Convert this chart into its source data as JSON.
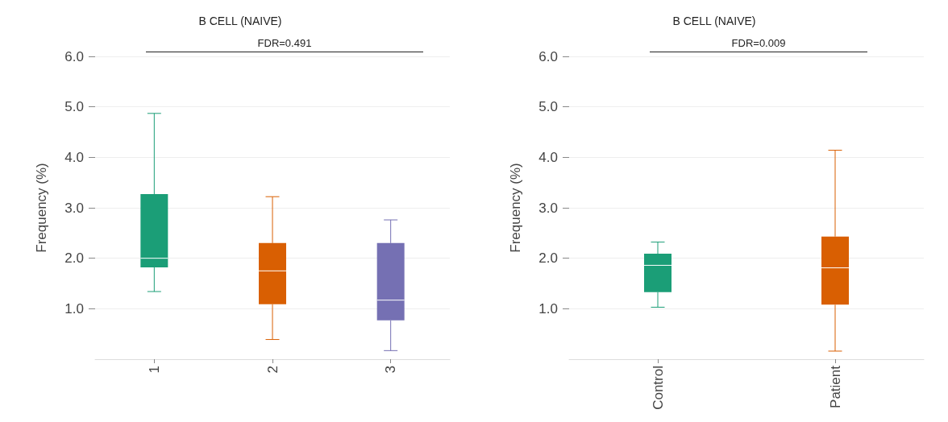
{
  "chart_data": [
    {
      "type": "box",
      "title": "B CELL (NAIVE)",
      "ylabel": "Frequency (%)",
      "categories": [
        "1",
        "2",
        "3"
      ],
      "colors": [
        "#1b9e77",
        "#d95f02",
        "#7570b3"
      ],
      "boxes": [
        {
          "low": 1.34,
          "q1": 1.82,
          "median": 2.0,
          "q3": 3.27,
          "high": 4.87
        },
        {
          "low": 0.39,
          "q1": 1.09,
          "median": 1.75,
          "q3": 2.3,
          "high": 3.22
        },
        {
          "low": 0.17,
          "q1": 0.77,
          "median": 1.17,
          "q3": 2.3,
          "high": 2.76
        }
      ],
      "ylim": [
        0,
        6
      ],
      "yticks": [
        {
          "value": 1,
          "label": "1.0"
        },
        {
          "value": 2,
          "label": "2.0"
        },
        {
          "value": 3,
          "label": "3.0"
        },
        {
          "value": 4,
          "label": "4.0"
        },
        {
          "value": 5,
          "label": "5.0"
        },
        {
          "value": 6,
          "label": "6.0"
        }
      ],
      "grid": "y",
      "annotations": [
        "FDR=0.491"
      ]
    },
    {
      "type": "box",
      "title": "B CELL (NAIVE)",
      "ylabel": "Frequency (%)",
      "categories": [
        "Control",
        "Patient"
      ],
      "colors": [
        "#1b9e77",
        "#d95f02"
      ],
      "boxes": [
        {
          "low": 1.03,
          "q1": 1.33,
          "median": 1.86,
          "q3": 2.09,
          "high": 2.32
        },
        {
          "low": 0.16,
          "q1": 1.08,
          "median": 1.81,
          "q3": 2.43,
          "high": 4.14
        }
      ],
      "ylim": [
        0,
        6
      ],
      "yticks": [
        {
          "value": 1,
          "label": "1.0"
        },
        {
          "value": 2,
          "label": "2.0"
        },
        {
          "value": 3,
          "label": "3.0"
        },
        {
          "value": 4,
          "label": "4.0"
        },
        {
          "value": 5,
          "label": "5.0"
        },
        {
          "value": 6,
          "label": "6.0"
        }
      ],
      "grid": "y",
      "annotations": [
        "FDR=0.009"
      ]
    }
  ]
}
